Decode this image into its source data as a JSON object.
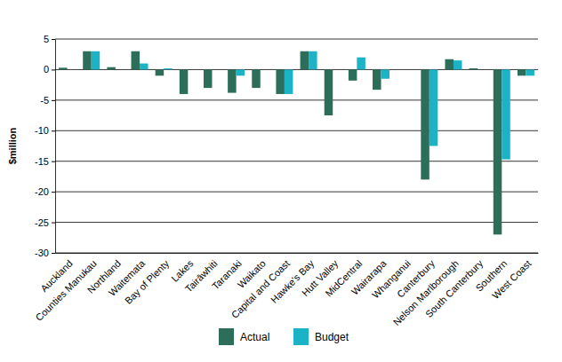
{
  "chart_data": {
    "type": "bar",
    "y_label": "$million",
    "categories": [
      "Auckland",
      "Counties Manukau",
      "Northland",
      "Waitemata",
      "Bay of Plenty",
      "Lakes",
      "Tairāwhiti",
      "Taranaki",
      "Waikato",
      "Capital and Coast",
      "Hawke's Bay",
      "Hutt Valley",
      "MidCentral",
      "Wairarapa",
      "Whanganui",
      "Canterbury",
      "Nelson Marlborough",
      "South Canterbury",
      "Southern",
      "West Coast"
    ],
    "series": [
      {
        "name": "Actual",
        "color": "#2d6e5a",
        "values": [
          0.3,
          3,
          0.4,
          3,
          -1,
          -4,
          -3,
          -3.8,
          -3,
          -4,
          3,
          -7.5,
          -1.8,
          -3.3,
          0,
          -18,
          1.7,
          0.2,
          -27,
          -1
        ]
      },
      {
        "name": "Budget",
        "color": "#1db3c6",
        "values": [
          0,
          3,
          0,
          1,
          0.2,
          0,
          0,
          -1,
          0,
          -4,
          3,
          0,
          2,
          -1.5,
          0,
          -12.5,
          1.5,
          0,
          -14.7,
          -1
        ]
      }
    ],
    "ylim": [
      -30,
      5
    ],
    "yticks": [
      5,
      0,
      -5,
      -10,
      -15,
      -20,
      -25,
      -30
    ],
    "grid": true,
    "legend": "bottom"
  }
}
